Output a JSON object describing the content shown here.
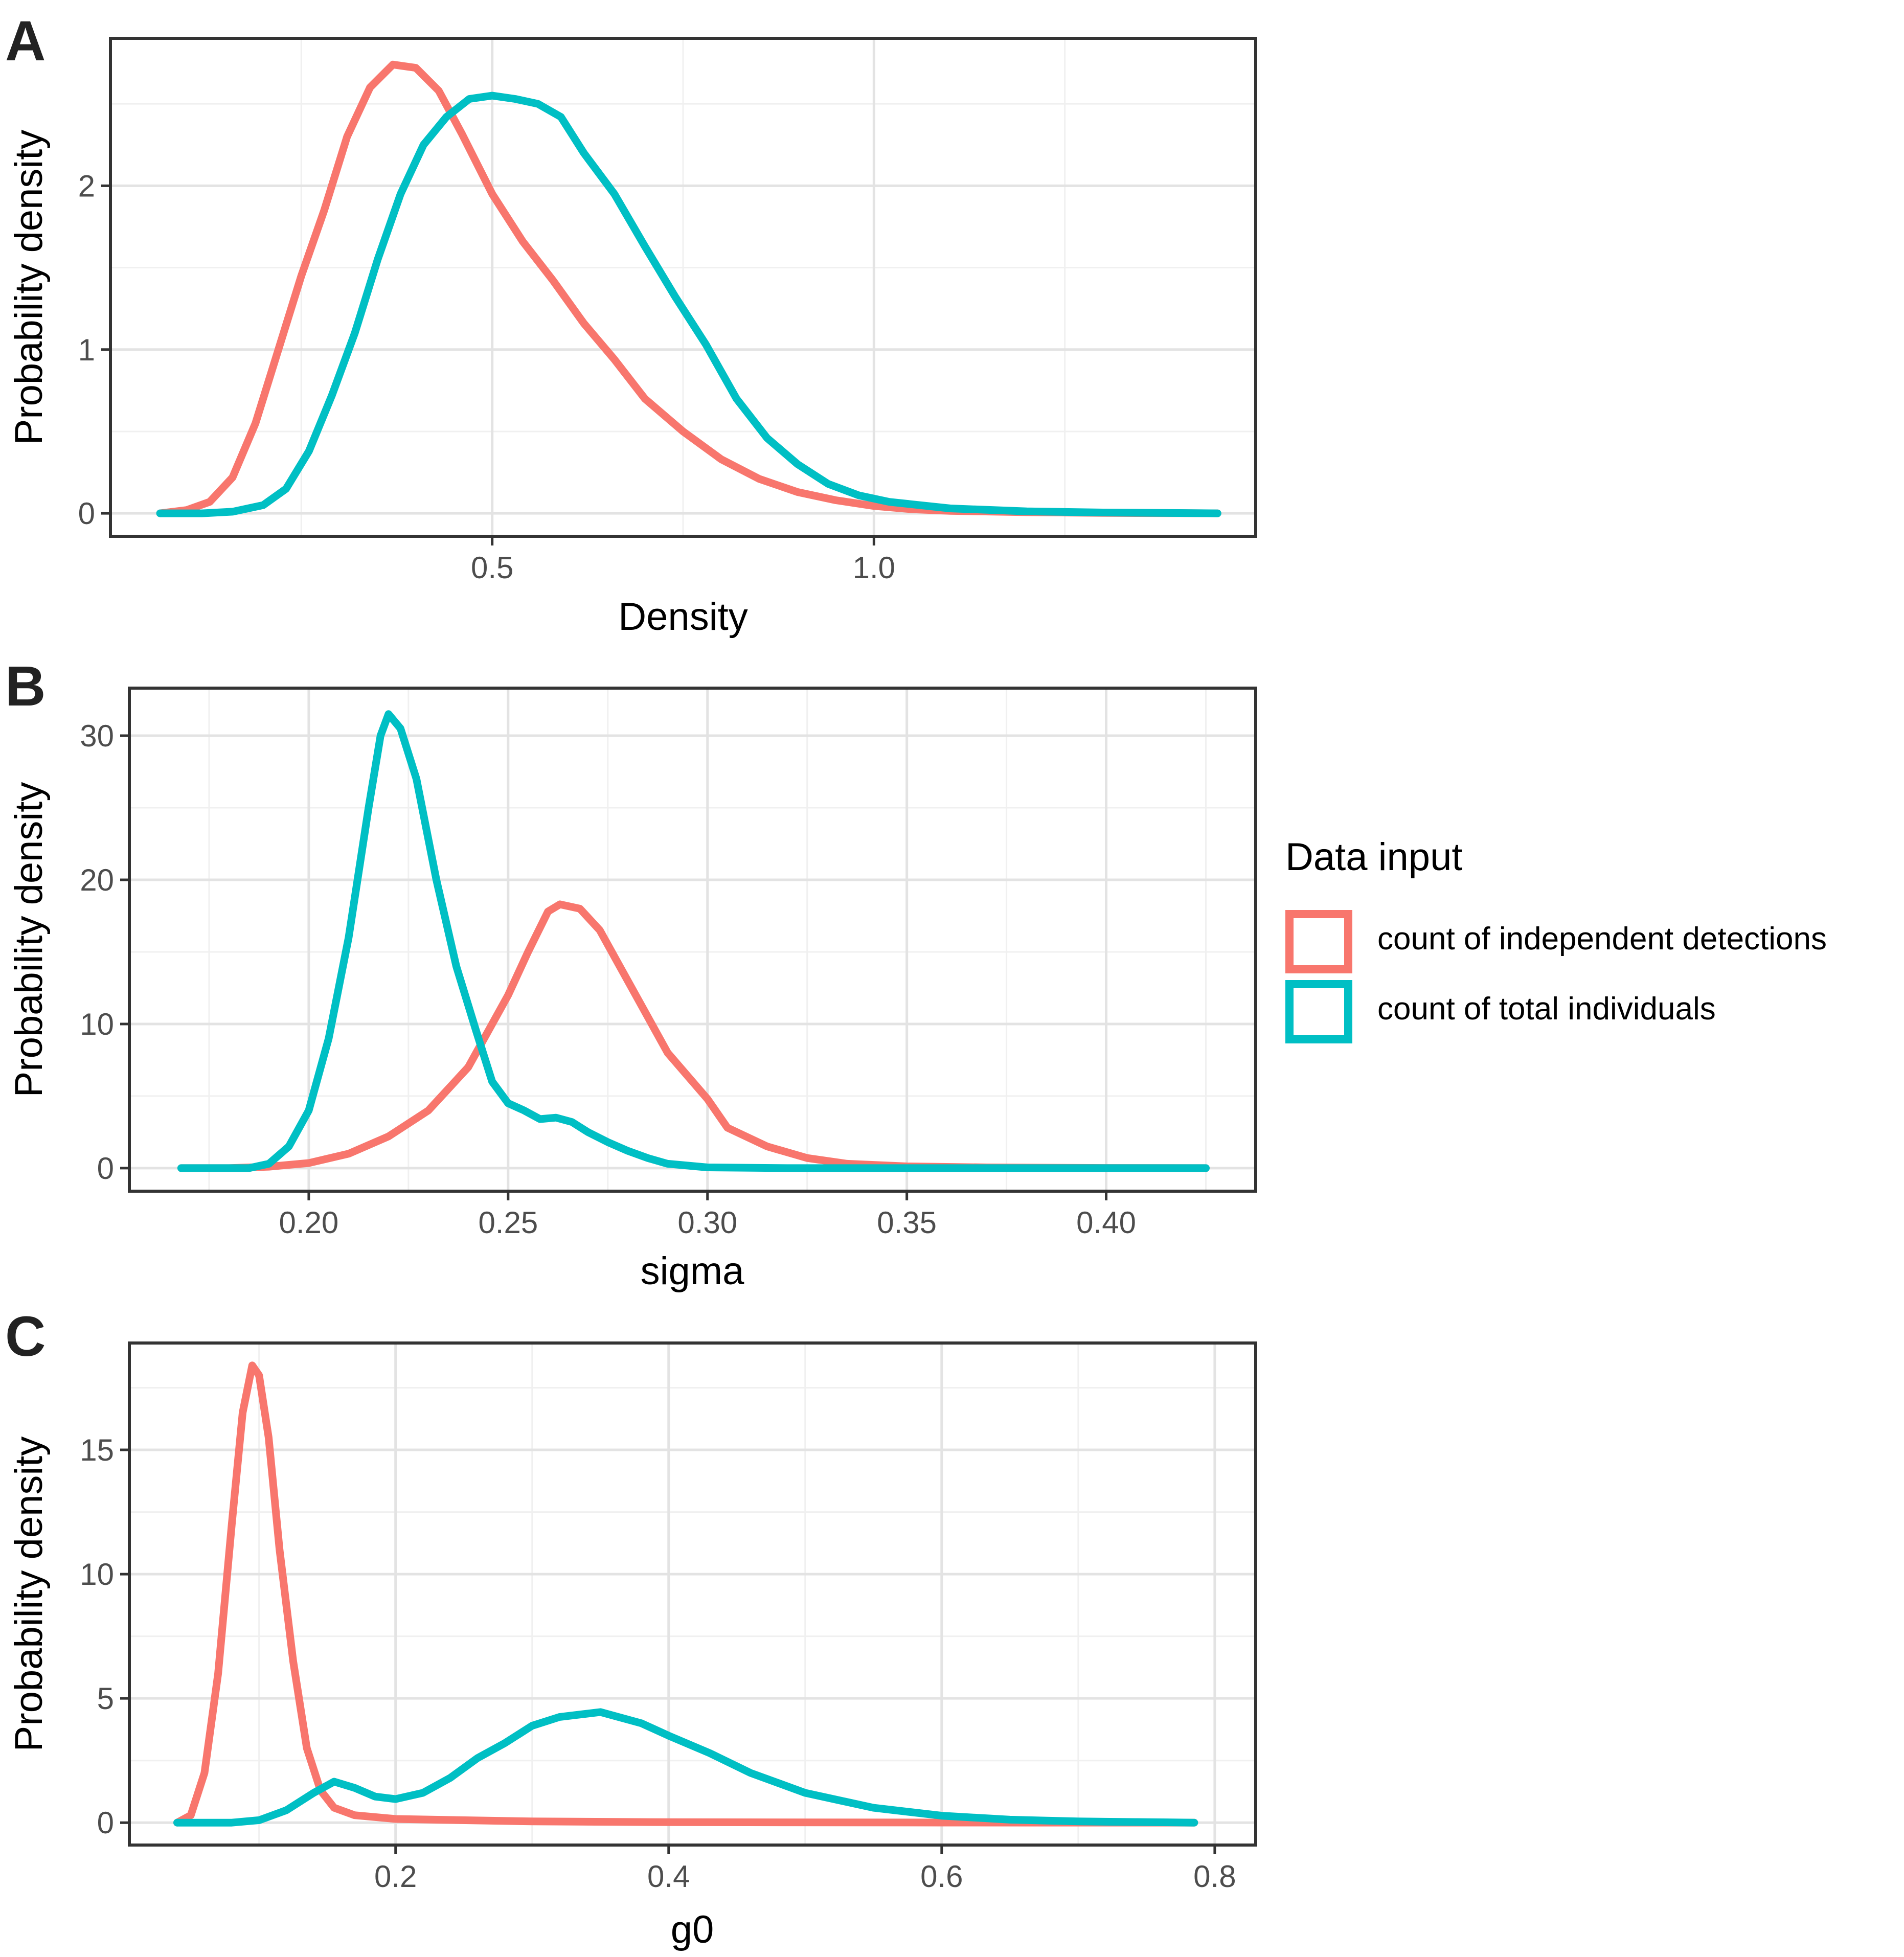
{
  "colors": {
    "independent": "#F8766D",
    "total": "#00BFC4"
  },
  "legend": {
    "title": "Data input",
    "items": [
      {
        "label": "count of independent detections",
        "color": "#F8766D"
      },
      {
        "label": "count of total individuals",
        "color": "#00BFC4"
      }
    ]
  },
  "chart_data": [
    {
      "panel": "A",
      "type": "line",
      "xlabel": "Density",
      "ylabel": "Probability density",
      "xlim": [
        0.0,
        1.5
      ],
      "ylim": [
        -0.14,
        2.9
      ],
      "xticks": [
        {
          "v": 0.5,
          "label": "0.5"
        },
        {
          "v": 1.0,
          "label": "1.0"
        }
      ],
      "xminor": [
        0.25,
        0.75,
        1.25
      ],
      "yticks": [
        {
          "v": 0,
          "label": "0"
        },
        {
          "v": 1,
          "label": "1"
        },
        {
          "v": 2,
          "label": "2"
        }
      ],
      "yminor": [
        0.5,
        1.5,
        2.5
      ],
      "series": [
        {
          "name": "count of independent detections",
          "color_key": "independent",
          "points": [
            [
              0.065,
              0.0
            ],
            [
              0.1,
              0.02
            ],
            [
              0.13,
              0.07
            ],
            [
              0.16,
              0.22
            ],
            [
              0.19,
              0.55
            ],
            [
              0.22,
              1.0
            ],
            [
              0.25,
              1.45
            ],
            [
              0.28,
              1.85
            ],
            [
              0.31,
              2.3
            ],
            [
              0.34,
              2.6
            ],
            [
              0.37,
              2.74
            ],
            [
              0.4,
              2.72
            ],
            [
              0.43,
              2.58
            ],
            [
              0.46,
              2.32
            ],
            [
              0.5,
              1.95
            ],
            [
              0.54,
              1.66
            ],
            [
              0.58,
              1.42
            ],
            [
              0.62,
              1.16
            ],
            [
              0.66,
              0.94
            ],
            [
              0.7,
              0.7
            ],
            [
              0.75,
              0.5
            ],
            [
              0.8,
              0.33
            ],
            [
              0.85,
              0.21
            ],
            [
              0.9,
              0.13
            ],
            [
              0.95,
              0.08
            ],
            [
              1.0,
              0.045
            ],
            [
              1.05,
              0.025
            ],
            [
              1.1,
              0.015
            ],
            [
              1.2,
              0.007
            ],
            [
              1.3,
              0.003
            ],
            [
              1.4,
              0.001
            ],
            [
              1.45,
              0.0
            ]
          ]
        },
        {
          "name": "count of total individuals",
          "color_key": "total",
          "points": [
            [
              0.065,
              0.0
            ],
            [
              0.12,
              0.0
            ],
            [
              0.16,
              0.01
            ],
            [
              0.2,
              0.05
            ],
            [
              0.23,
              0.15
            ],
            [
              0.26,
              0.38
            ],
            [
              0.29,
              0.72
            ],
            [
              0.32,
              1.1
            ],
            [
              0.35,
              1.55
            ],
            [
              0.38,
              1.95
            ],
            [
              0.41,
              2.25
            ],
            [
              0.44,
              2.42
            ],
            [
              0.47,
              2.53
            ],
            [
              0.5,
              2.55
            ],
            [
              0.53,
              2.53
            ],
            [
              0.56,
              2.5
            ],
            [
              0.59,
              2.42
            ],
            [
              0.62,
              2.2
            ],
            [
              0.66,
              1.95
            ],
            [
              0.7,
              1.63
            ],
            [
              0.74,
              1.32
            ],
            [
              0.78,
              1.03
            ],
            [
              0.82,
              0.7
            ],
            [
              0.86,
              0.46
            ],
            [
              0.9,
              0.3
            ],
            [
              0.94,
              0.18
            ],
            [
              0.98,
              0.11
            ],
            [
              1.02,
              0.07
            ],
            [
              1.1,
              0.03
            ],
            [
              1.2,
              0.012
            ],
            [
              1.3,
              0.005
            ],
            [
              1.4,
              0.002
            ],
            [
              1.45,
              0.0
            ]
          ]
        }
      ]
    },
    {
      "panel": "B",
      "type": "line",
      "xlabel": "sigma",
      "ylabel": "Probability density",
      "xlim": [
        0.155,
        0.4375
      ],
      "ylim": [
        -1.6,
        33.3
      ],
      "xticks": [
        {
          "v": 0.2,
          "label": "0.20"
        },
        {
          "v": 0.25,
          "label": "0.25"
        },
        {
          "v": 0.3,
          "label": "0.30"
        },
        {
          "v": 0.35,
          "label": "0.35"
        },
        {
          "v": 0.4,
          "label": "0.40"
        }
      ],
      "xminor": [
        0.175,
        0.225,
        0.275,
        0.325,
        0.375,
        0.425
      ],
      "yticks": [
        {
          "v": 0,
          "label": "0"
        },
        {
          "v": 10,
          "label": "10"
        },
        {
          "v": 20,
          "label": "20"
        },
        {
          "v": 30,
          "label": "30"
        }
      ],
      "yminor": [
        5,
        15,
        25
      ],
      "series": [
        {
          "name": "count of independent detections",
          "color_key": "independent",
          "points": [
            [
              0.168,
              0.0
            ],
            [
              0.18,
              0.0
            ],
            [
              0.19,
              0.1
            ],
            [
              0.2,
              0.35
            ],
            [
              0.21,
              1.0
            ],
            [
              0.22,
              2.2
            ],
            [
              0.23,
              4.0
            ],
            [
              0.24,
              7.0
            ],
            [
              0.25,
              12.0
            ],
            [
              0.255,
              15.0
            ],
            [
              0.26,
              17.8
            ],
            [
              0.263,
              18.3
            ],
            [
              0.268,
              18.0
            ],
            [
              0.273,
              16.5
            ],
            [
              0.278,
              14.0
            ],
            [
              0.285,
              10.5
            ],
            [
              0.29,
              8.0
            ],
            [
              0.3,
              4.8
            ],
            [
              0.305,
              2.8
            ],
            [
              0.315,
              1.5
            ],
            [
              0.325,
              0.7
            ],
            [
              0.335,
              0.3
            ],
            [
              0.35,
              0.12
            ],
            [
              0.37,
              0.05
            ],
            [
              0.4,
              0.01
            ],
            [
              0.425,
              0.0
            ]
          ]
        },
        {
          "name": "count of total individuals",
          "color_key": "total",
          "points": [
            [
              0.168,
              0.0
            ],
            [
              0.185,
              0.0
            ],
            [
              0.19,
              0.3
            ],
            [
              0.195,
              1.5
            ],
            [
              0.2,
              4.0
            ],
            [
              0.205,
              9.0
            ],
            [
              0.21,
              16.0
            ],
            [
              0.215,
              25.0
            ],
            [
              0.218,
              30.0
            ],
            [
              0.22,
              31.5
            ],
            [
              0.223,
              30.5
            ],
            [
              0.227,
              27.0
            ],
            [
              0.232,
              20.0
            ],
            [
              0.237,
              14.0
            ],
            [
              0.242,
              9.5
            ],
            [
              0.246,
              6.0
            ],
            [
              0.25,
              4.5
            ],
            [
              0.254,
              4.0
            ],
            [
              0.258,
              3.4
            ],
            [
              0.262,
              3.5
            ],
            [
              0.266,
              3.2
            ],
            [
              0.27,
              2.5
            ],
            [
              0.275,
              1.8
            ],
            [
              0.28,
              1.2
            ],
            [
              0.285,
              0.7
            ],
            [
              0.29,
              0.3
            ],
            [
              0.3,
              0.05
            ],
            [
              0.32,
              0.0
            ],
            [
              0.425,
              0.0
            ]
          ]
        }
      ]
    },
    {
      "panel": "C",
      "type": "line",
      "xlabel": "g0",
      "ylabel": "Probability density",
      "xlim": [
        0.005,
        0.83
      ],
      "ylim": [
        -0.9,
        19.3
      ],
      "xticks": [
        {
          "v": 0.2,
          "label": "0.2"
        },
        {
          "v": 0.4,
          "label": "0.4"
        },
        {
          "v": 0.6,
          "label": "0.6"
        },
        {
          "v": 0.8,
          "label": "0.8"
        }
      ],
      "xminor": [
        0.1,
        0.3,
        0.5,
        0.7
      ],
      "yticks": [
        {
          "v": 0,
          "label": "0"
        },
        {
          "v": 5,
          "label": "5"
        },
        {
          "v": 10,
          "label": "10"
        },
        {
          "v": 15,
          "label": "15"
        }
      ],
      "yminor": [
        2.5,
        7.5,
        12.5,
        17.5
      ],
      "series": [
        {
          "name": "count of independent detections",
          "color_key": "independent",
          "points": [
            [
              0.04,
              0.0
            ],
            [
              0.05,
              0.3
            ],
            [
              0.06,
              2.0
            ],
            [
              0.07,
              6.0
            ],
            [
              0.08,
              12.0
            ],
            [
              0.088,
              16.5
            ],
            [
              0.095,
              18.4
            ],
            [
              0.1,
              18.0
            ],
            [
              0.107,
              15.5
            ],
            [
              0.115,
              11.0
            ],
            [
              0.125,
              6.5
            ],
            [
              0.135,
              3.0
            ],
            [
              0.145,
              1.3
            ],
            [
              0.155,
              0.6
            ],
            [
              0.17,
              0.3
            ],
            [
              0.2,
              0.15
            ],
            [
              0.3,
              0.05
            ],
            [
              0.4,
              0.02
            ],
            [
              0.6,
              0.005
            ],
            [
              0.785,
              0.0
            ]
          ]
        },
        {
          "name": "count of total individuals",
          "color_key": "total",
          "points": [
            [
              0.04,
              0.0
            ],
            [
              0.08,
              0.0
            ],
            [
              0.1,
              0.1
            ],
            [
              0.12,
              0.5
            ],
            [
              0.14,
              1.2
            ],
            [
              0.155,
              1.65
            ],
            [
              0.17,
              1.4
            ],
            [
              0.185,
              1.05
            ],
            [
              0.2,
              0.95
            ],
            [
              0.22,
              1.2
            ],
            [
              0.24,
              1.8
            ],
            [
              0.26,
              2.6
            ],
            [
              0.28,
              3.2
            ],
            [
              0.3,
              3.9
            ],
            [
              0.32,
              4.25
            ],
            [
              0.35,
              4.45
            ],
            [
              0.38,
              4.0
            ],
            [
              0.4,
              3.5
            ],
            [
              0.43,
              2.8
            ],
            [
              0.46,
              2.0
            ],
            [
              0.5,
              1.2
            ],
            [
              0.55,
              0.6
            ],
            [
              0.6,
              0.28
            ],
            [
              0.65,
              0.12
            ],
            [
              0.7,
              0.05
            ],
            [
              0.785,
              0.0
            ]
          ]
        }
      ]
    }
  ]
}
